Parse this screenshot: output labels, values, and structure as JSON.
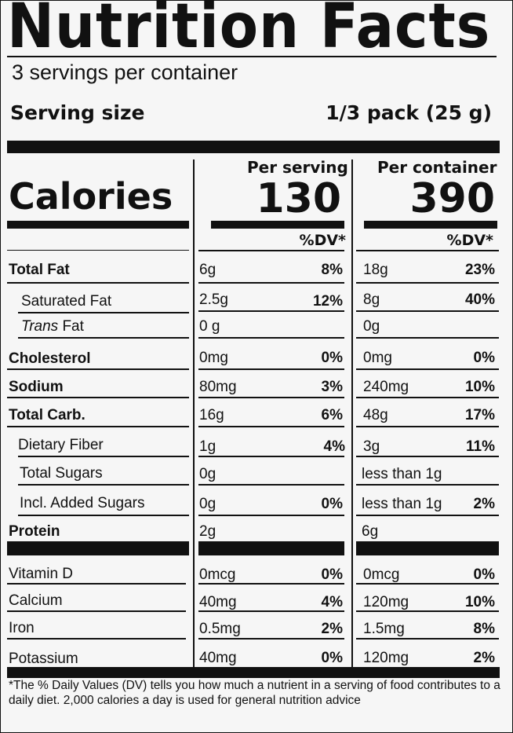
{
  "header": {
    "title": "Nutrition Facts",
    "servings": "3 servings per container",
    "serving_size_label": "Serving size",
    "serving_size_value": "1/3 pack (25 g)"
  },
  "columns": {
    "per_serving": "Per serving",
    "per_container": "Per container",
    "dv_label": "%DV*"
  },
  "calories": {
    "label": "Calories",
    "per_serving": "130",
    "per_container": "390"
  },
  "nutrients": [
    {
      "name": "Total Fat",
      "serv_amt": "6g",
      "serv_dv": "8%",
      "cont_amt": "18g",
      "cont_dv": "23%"
    },
    {
      "name": "Saturated Fat",
      "serv_amt": "2.5g",
      "serv_dv": "12%",
      "cont_amt": "8g",
      "cont_dv": "40%"
    },
    {
      "name_italic": "Trans",
      "name_rest": " Fat",
      "serv_amt": "0 g",
      "cont_amt": "0g"
    },
    {
      "name": "Cholesterol",
      "serv_amt": "0mg",
      "serv_dv": "0%",
      "cont_amt": "0mg",
      "cont_dv": "0%"
    },
    {
      "name": "Sodium",
      "serv_amt": "80mg",
      "serv_dv": "3%",
      "cont_amt": "240mg",
      "cont_dv": "10%"
    },
    {
      "name": "Total Carb.",
      "serv_amt": "16g",
      "serv_dv": "6%",
      "cont_amt": "48g",
      "cont_dv": "17%"
    },
    {
      "name": "Dietary Fiber",
      "serv_amt": "1g",
      "serv_dv": "4%",
      "cont_amt": "3g",
      "cont_dv": "11%"
    },
    {
      "name": "Total Sugars",
      "serv_amt": "0g",
      "cont_amt": "less than 1g"
    },
    {
      "name": "Incl. Added Sugars",
      "serv_amt": "0g",
      "serv_dv": "0%",
      "cont_amt": "less than 1g",
      "cont_dv": "2%"
    },
    {
      "name": "Protein",
      "serv_amt": "2g",
      "cont_amt": "6g"
    }
  ],
  "vitamins": [
    {
      "name": "Vitamin D",
      "serv_amt": "0mcg",
      "serv_dv": "0%",
      "cont_amt": "0mcg",
      "cont_dv": "0%"
    },
    {
      "name": "Calcium",
      "serv_amt": "40mg",
      "serv_dv": "4%",
      "cont_amt": "120mg",
      "cont_dv": "10%"
    },
    {
      "name": "Iron",
      "serv_amt": "0.5mg",
      "serv_dv": "2%",
      "cont_amt": "1.5mg",
      "cont_dv": "8%"
    },
    {
      "name": "Potassium",
      "serv_amt": "40mg",
      "serv_dv": "0%",
      "cont_amt": "120mg",
      "cont_dv": "2%"
    }
  ],
  "footnote": "*The % Daily Values (DV) tells you how much a nutrient in a serving of food contributes to a daily diet. 2,000 calories a day is used for general nutrition advice"
}
